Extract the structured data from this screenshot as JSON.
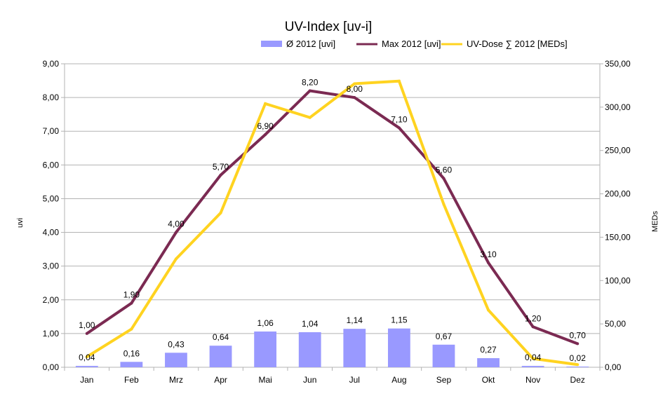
{
  "chart_data": {
    "type": "bar",
    "title": "UV-Index [uv-i]",
    "ylabel_left": "uvi",
    "ylabel_right": "MEDs",
    "categories": [
      "Jan",
      "Feb",
      "Mrz",
      "Apr",
      "Mai",
      "Jun",
      "Jul",
      "Aug",
      "Sep",
      "Okt",
      "Nov",
      "Dez"
    ],
    "ylim_left": [
      0,
      9
    ],
    "ylim_right": [
      0,
      350
    ],
    "yticks_left": [
      "0,00",
      "1,00",
      "2,00",
      "3,00",
      "4,00",
      "5,00",
      "6,00",
      "7,00",
      "8,00",
      "9,00"
    ],
    "yticks_right": [
      "0,00",
      "50,00",
      "100,00",
      "150,00",
      "200,00",
      "250,00",
      "300,00",
      "350,00"
    ],
    "grid": true,
    "legend_position": "top",
    "series": [
      {
        "name": "Ø 2012 [uvi]",
        "kind": "bar",
        "axis": "left",
        "color": "#9999ff",
        "values": [
          0.04,
          0.16,
          0.43,
          0.64,
          1.06,
          1.04,
          1.14,
          1.15,
          0.67,
          0.27,
          0.04,
          0.02
        ],
        "labels": [
          "0,04",
          "0,16",
          "0,43",
          "0,64",
          "1,06",
          "1,04",
          "1,14",
          "1,15",
          "0,67",
          "0,27",
          "0,04",
          "0,02"
        ]
      },
      {
        "name": "Max 2012 [uvi]",
        "kind": "line",
        "axis": "left",
        "color": "#7b2a52",
        "values": [
          1.0,
          1.9,
          4.0,
          5.7,
          6.9,
          8.2,
          8.0,
          7.1,
          5.6,
          3.1,
          1.2,
          0.7
        ],
        "labels": [
          "1,00",
          "1,90",
          "4,00",
          "5,70",
          "6,90",
          "8,20",
          "8,00",
          "7,10",
          "5,60",
          "3,10",
          "1,20",
          "0,70"
        ]
      },
      {
        "name": "UV-Dose ∑ 2012 [MEDs]",
        "kind": "line",
        "axis": "right",
        "color": "#ffd320",
        "values": [
          12,
          44,
          125,
          178,
          304,
          288,
          327,
          330,
          188,
          66,
          10,
          3
        ]
      }
    ]
  }
}
